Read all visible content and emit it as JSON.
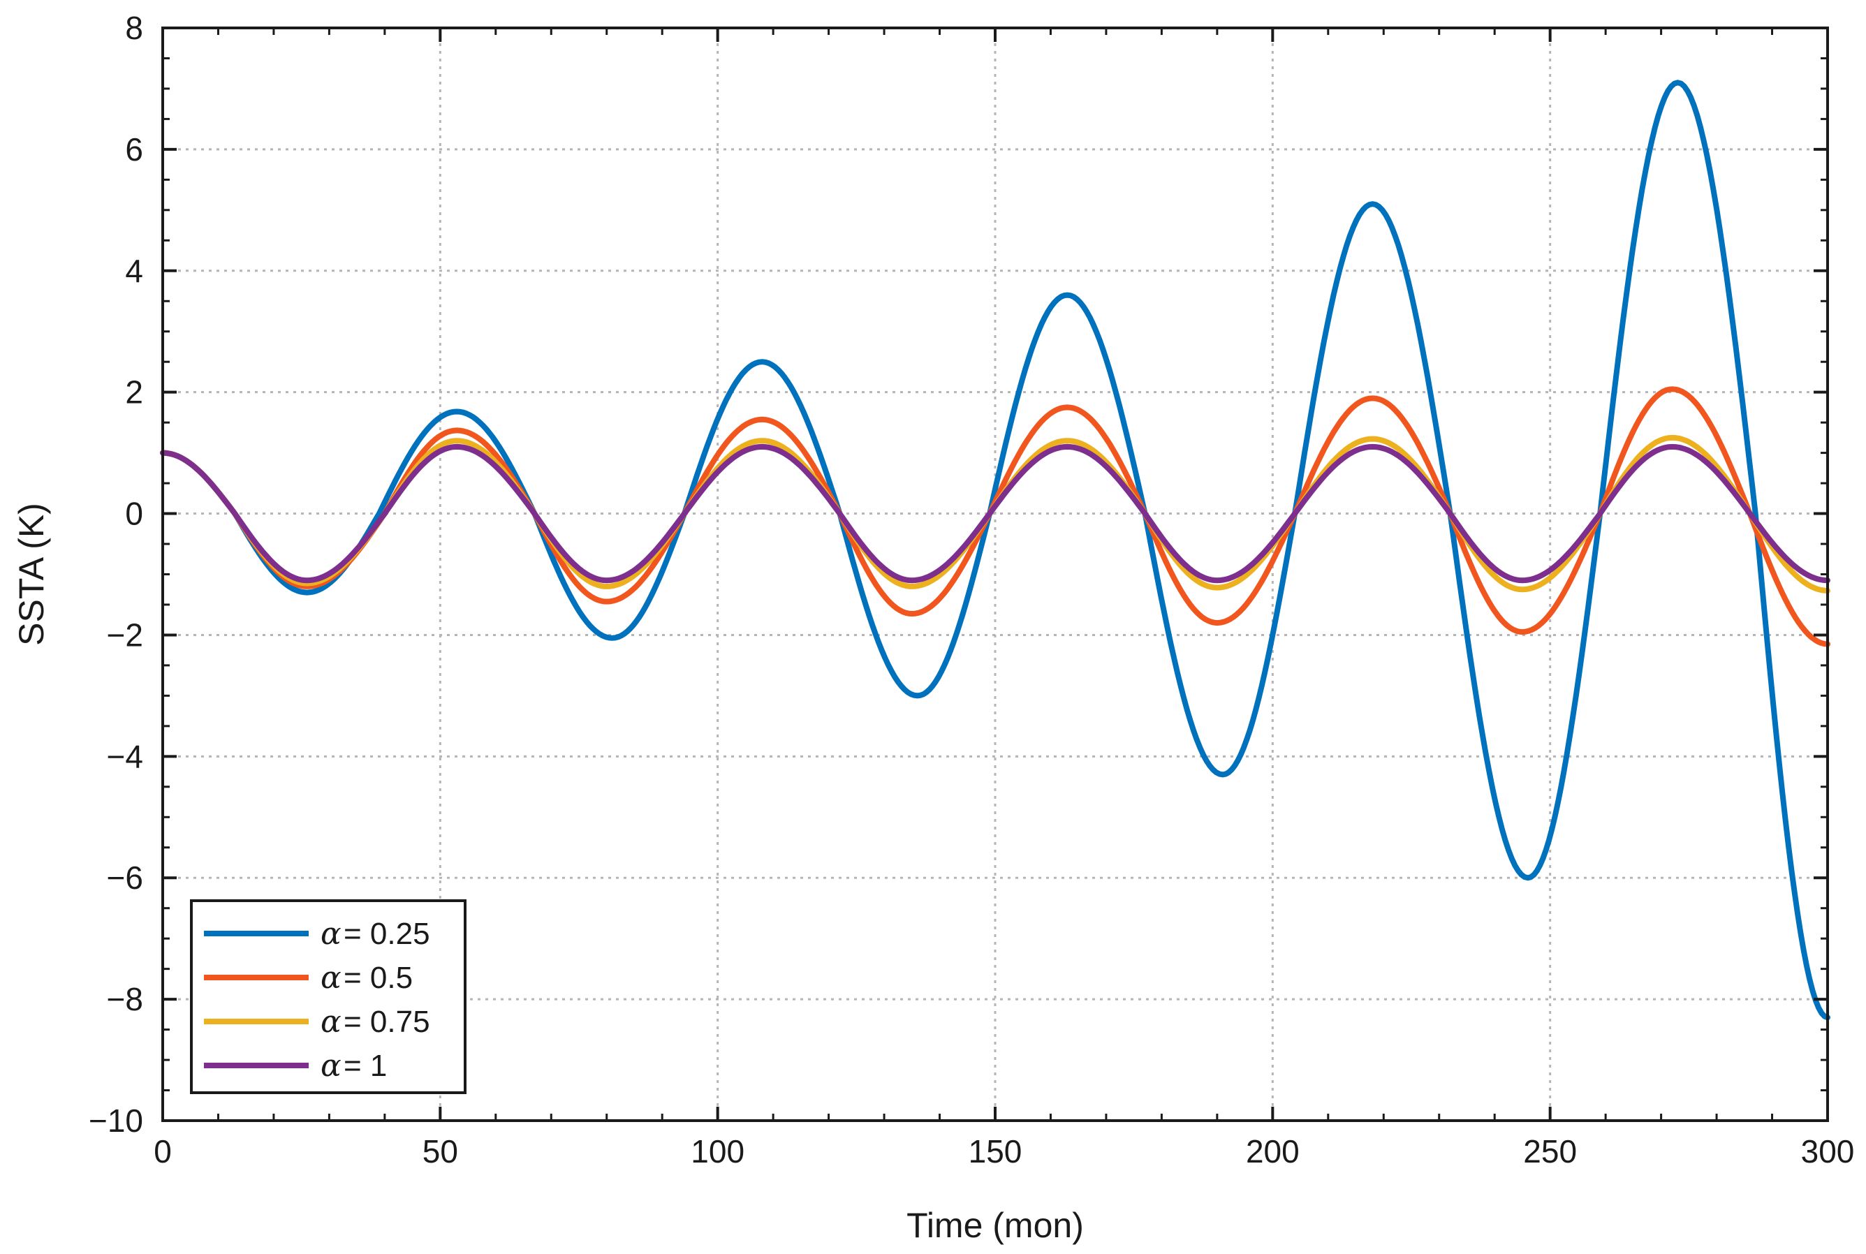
{
  "chart_data": {
    "type": "line",
    "title": "",
    "xlabel": "Time (mon)",
    "ylabel": "SSTA (K)",
    "xlim": [
      0,
      300
    ],
    "ylim": [
      -10,
      8
    ],
    "xticks": [
      0,
      50,
      100,
      150,
      200,
      250,
      300
    ],
    "yticks": [
      -10,
      -8,
      -6,
      -4,
      -2,
      0,
      2,
      4,
      6,
      8
    ],
    "xtick_labels": [
      "0",
      "50",
      "100",
      "150",
      "200",
      "250",
      "300"
    ],
    "ytick_labels": [
      "−10",
      "−8",
      "−6",
      "−4",
      "−2",
      "0",
      "2",
      "4",
      "6",
      "8"
    ],
    "grid": true,
    "legend_position": "bottom-left",
    "legend_symbol": "α",
    "series": [
      {
        "name": "α = 0.25",
        "legend_label": "= 0.25",
        "color": "#0072BD",
        "x": [
          0,
          13,
          26,
          39,
          53,
          67,
          81,
          94,
          108,
          122,
          136,
          149,
          163,
          177,
          191,
          204,
          218,
          232,
          246,
          259,
          273,
          287,
          300
        ],
        "y": [
          1.0,
          0.0,
          -1.3,
          0.0,
          1.68,
          0.0,
          -2.05,
          0.0,
          2.5,
          0.0,
          -3.0,
          0.0,
          3.6,
          0.0,
          -4.3,
          0.0,
          5.1,
          0.0,
          -6.0,
          0.0,
          7.1,
          0.0,
          -8.3
        ]
      },
      {
        "name": "α = 0.5",
        "legend_label": "= 0.5",
        "color": "#F0561E",
        "x": [
          0,
          13,
          26,
          40,
          53,
          67,
          80,
          94,
          108,
          122,
          135,
          149,
          163,
          177,
          190,
          204,
          218,
          232,
          245,
          259,
          272,
          286,
          300
        ],
        "y": [
          1.0,
          0.0,
          -1.2,
          0.0,
          1.37,
          0.0,
          -1.45,
          0.0,
          1.55,
          0.0,
          -1.65,
          0.0,
          1.75,
          0.0,
          -1.8,
          0.0,
          1.9,
          0.0,
          -1.95,
          0.0,
          2.05,
          0.0,
          -2.15
        ]
      },
      {
        "name": "α = 0.75",
        "legend_label": "= 0.75",
        "color": "#EDB120",
        "x": [
          0,
          13,
          26,
          40,
          53,
          67,
          80,
          94,
          108,
          122,
          135,
          149,
          163,
          177,
          190,
          204,
          218,
          232,
          245,
          259,
          272,
          286,
          300
        ],
        "y": [
          1.0,
          0.0,
          -1.15,
          0.0,
          1.2,
          0.0,
          -1.2,
          0.0,
          1.2,
          0.0,
          -1.2,
          0.0,
          1.2,
          0.0,
          -1.22,
          0.0,
          1.23,
          0.0,
          -1.25,
          0.0,
          1.25,
          0.0,
          -1.27
        ]
      },
      {
        "name": "α = 1",
        "legend_label": "= 1",
        "color": "#7E2F8E",
        "x": [
          0,
          13,
          26,
          40,
          53,
          67,
          80,
          94,
          108,
          122,
          135,
          149,
          163,
          177,
          190,
          204,
          218,
          232,
          245,
          259,
          272,
          286,
          300
        ],
        "y": [
          1.0,
          0.0,
          -1.1,
          0.0,
          1.1,
          0.0,
          -1.1,
          0.0,
          1.1,
          0.0,
          -1.1,
          0.0,
          1.1,
          0.0,
          -1.1,
          0.0,
          1.1,
          0.0,
          -1.1,
          0.0,
          1.1,
          0.0,
          -1.1
        ]
      }
    ]
  }
}
